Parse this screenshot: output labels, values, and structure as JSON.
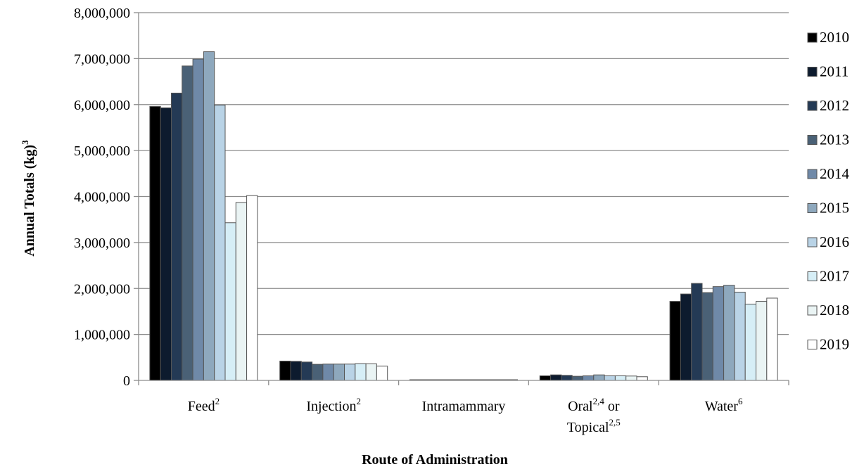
{
  "chart_data": {
    "type": "bar",
    "xlabel": "Route of Administration",
    "ylabel": "Annual Totals (kg)",
    "ylabel_sup": "3",
    "ylim": [
      0,
      8000000
    ],
    "y_ticks": [
      0,
      1000000,
      2000000,
      3000000,
      4000000,
      5000000,
      6000000,
      7000000,
      8000000
    ],
    "y_tick_labels": [
      "0",
      "1,000,000",
      "2,000,000",
      "3,000,000",
      "4,000,000",
      "5,000,000",
      "6,000,000",
      "7,000,000",
      "8,000,000"
    ],
    "grid": true,
    "legend_position": "right",
    "categories": [
      {
        "lines": [
          {
            "text": "Feed",
            "sup": "2"
          }
        ]
      },
      {
        "lines": [
          {
            "text": "Injection",
            "sup": "2"
          }
        ]
      },
      {
        "lines": [
          {
            "text": "Intramammary",
            "sup": ""
          }
        ]
      },
      {
        "lines": [
          {
            "text": "Oral",
            "sup": "2,4",
            "after": " or"
          },
          {
            "text": "Topical",
            "sup": "2,5"
          }
        ]
      },
      {
        "lines": [
          {
            "text": "Water",
            "sup": "6"
          }
        ]
      }
    ],
    "series": [
      {
        "name": "2010",
        "color": "#000000",
        "values": [
          5960000,
          420000,
          15000,
          100000,
          1720000
        ]
      },
      {
        "name": "2011",
        "color": "#0d1b2e",
        "values": [
          5930000,
          415000,
          14000,
          120000,
          1880000
        ]
      },
      {
        "name": "2012",
        "color": "#243a55",
        "values": [
          6250000,
          400000,
          13000,
          110000,
          2110000
        ]
      },
      {
        "name": "2013",
        "color": "#4a6176",
        "values": [
          6840000,
          350000,
          12000,
          90000,
          1910000
        ]
      },
      {
        "name": "2014",
        "color": "#6f89a8",
        "values": [
          6990000,
          355000,
          12000,
          100000,
          2040000
        ]
      },
      {
        "name": "2015",
        "color": "#8ea8bd",
        "values": [
          7150000,
          355000,
          12000,
          120000,
          2070000
        ]
      },
      {
        "name": "2016",
        "color": "#b9d3e6",
        "values": [
          5990000,
          355000,
          11000,
          100000,
          1920000
        ]
      },
      {
        "name": "2017",
        "color": "#d6eef6",
        "values": [
          3430000,
          365000,
          11000,
          100000,
          1660000
        ]
      },
      {
        "name": "2018",
        "color": "#eaf4f4",
        "values": [
          3870000,
          360000,
          11000,
          95000,
          1720000
        ]
      },
      {
        "name": "2019",
        "color": "#ffffff",
        "values": [
          4020000,
          310000,
          10000,
          80000,
          1790000
        ]
      }
    ]
  }
}
